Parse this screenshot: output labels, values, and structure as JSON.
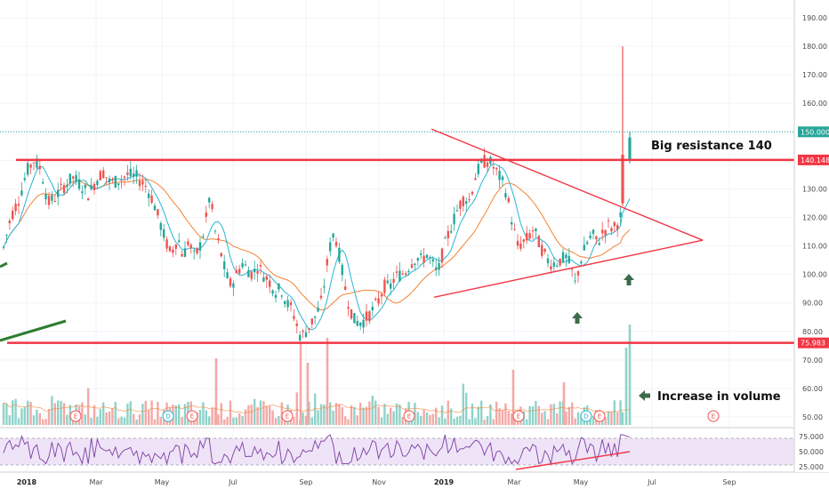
{
  "chart_data": {
    "type": "candlestick",
    "price_axis": {
      "min": 45,
      "max": 192,
      "ticks": [
        50,
        60,
        70,
        80,
        90,
        100,
        110,
        120,
        130,
        140,
        150,
        160,
        170,
        180,
        190
      ],
      "tick_labels": [
        "50.00",
        "60.00",
        "70.00",
        "80.00",
        "90.00",
        "100.00",
        "110.00",
        "120.00",
        "130.00",
        "140.00",
        "150.00",
        "160.00",
        "170.00",
        "180.00",
        "190.00"
      ]
    },
    "rsi_axis": {
      "min": 20,
      "max": 80,
      "ticks": [
        25,
        50,
        75
      ],
      "tick_labels": [
        "25.000",
        "50.000",
        "75.000"
      ]
    },
    "time_axis": {
      "labels": [
        "2018",
        "Mar",
        "May",
        "Jul",
        "Sep",
        "Nov",
        "2019",
        "Mar",
        "May",
        "Jul",
        "Sep"
      ],
      "bold": [
        true,
        false,
        false,
        false,
        false,
        false,
        true,
        false,
        false,
        false,
        false
      ]
    },
    "price_tags": [
      {
        "value": 150.0,
        "label": "150.000",
        "color": "#26a69a"
      },
      {
        "value": 140.148,
        "label": "140.148",
        "color": "#f23645"
      },
      {
        "value": 75.983,
        "label": "75.983",
        "color": "#f23645"
      }
    ],
    "price_path": [
      [
        0,
        104
      ],
      [
        12,
        120
      ],
      [
        22,
        127
      ],
      [
        30,
        136
      ],
      [
        38,
        140
      ],
      [
        46,
        137
      ],
      [
        54,
        125
      ],
      [
        62,
        127
      ],
      [
        72,
        131
      ],
      [
        82,
        134
      ],
      [
        92,
        131
      ],
      [
        100,
        128
      ],
      [
        108,
        133
      ],
      [
        116,
        136
      ],
      [
        124,
        132
      ],
      [
        134,
        133
      ],
      [
        144,
        135
      ],
      [
        154,
        134
      ],
      [
        164,
        131
      ],
      [
        172,
        126
      ],
      [
        180,
        118
      ],
      [
        186,
        112
      ],
      [
        192,
        107
      ],
      [
        200,
        113
      ],
      [
        206,
        106
      ],
      [
        212,
        112
      ],
      [
        218,
        106
      ],
      [
        224,
        109
      ],
      [
        230,
        116
      ],
      [
        236,
        128
      ],
      [
        242,
        115
      ],
      [
        248,
        108
      ],
      [
        254,
        100
      ],
      [
        260,
        96
      ],
      [
        266,
        100
      ],
      [
        272,
        104
      ],
      [
        278,
        102
      ],
      [
        284,
        100
      ],
      [
        290,
        103
      ],
      [
        296,
        100
      ],
      [
        302,
        98
      ],
      [
        310,
        94
      ],
      [
        316,
        95
      ],
      [
        322,
        90
      ],
      [
        328,
        88
      ],
      [
        334,
        82
      ],
      [
        338,
        78
      ],
      [
        344,
        80
      ],
      [
        350,
        83
      ],
      [
        356,
        86
      ],
      [
        362,
        91
      ],
      [
        366,
        100
      ],
      [
        370,
        108
      ],
      [
        374,
        114
      ],
      [
        378,
        112
      ],
      [
        382,
        106
      ],
      [
        386,
        99
      ],
      [
        390,
        92
      ],
      [
        394,
        88
      ],
      [
        398,
        84
      ],
      [
        404,
        83
      ],
      [
        410,
        84
      ],
      [
        418,
        87
      ],
      [
        426,
        91
      ],
      [
        432,
        96
      ],
      [
        438,
        95
      ],
      [
        444,
        99
      ],
      [
        450,
        100
      ],
      [
        456,
        101
      ],
      [
        462,
        104
      ],
      [
        468,
        106
      ],
      [
        474,
        105
      ],
      [
        480,
        107
      ],
      [
        486,
        104
      ],
      [
        492,
        100
      ],
      [
        498,
        108
      ],
      [
        504,
        114
      ],
      [
        510,
        119
      ],
      [
        516,
        124
      ],
      [
        522,
        127
      ],
      [
        528,
        126
      ],
      [
        534,
        134
      ],
      [
        540,
        138
      ],
      [
        546,
        140
      ],
      [
        552,
        139
      ],
      [
        558,
        136
      ],
      [
        564,
        133
      ],
      [
        570,
        128
      ],
      [
        576,
        118
      ],
      [
        582,
        110
      ],
      [
        588,
        111
      ],
      [
        594,
        113
      ],
      [
        600,
        116
      ],
      [
        606,
        111
      ],
      [
        612,
        107
      ],
      [
        618,
        104
      ],
      [
        624,
        104
      ],
      [
        630,
        105
      ],
      [
        636,
        106
      ],
      [
        642,
        103
      ],
      [
        646,
        96
      ],
      [
        650,
        101
      ],
      [
        654,
        106
      ],
      [
        660,
        111
      ],
      [
        666,
        114
      ],
      [
        672,
        111
      ],
      [
        678,
        115
      ],
      [
        684,
        117
      ],
      [
        690,
        116
      ],
      [
        696,
        119
      ],
      [
        700,
        122
      ],
      [
        704,
        130
      ],
      [
        707,
        134
      ]
    ],
    "candle_x_start": 4,
    "candle_x_end": 708,
    "candle_spacing": 3.4,
    "breakout_candles": [
      {
        "x": 700,
        "open": 125,
        "close": 142,
        "high": 180,
        "low": 124,
        "color": "#ef5350"
      },
      {
        "x": 708,
        "open": 140,
        "close": 148,
        "high": 150,
        "low": 139,
        "color": "#26a69a"
      }
    ],
    "volume_spikes": [
      {
        "x": 243,
        "h": 75
      },
      {
        "x": 338,
        "h": 94
      },
      {
        "x": 346,
        "h": 70
      },
      {
        "x": 368,
        "h": 98
      },
      {
        "x": 577,
        "h": 62
      },
      {
        "x": 634,
        "h": 48
      },
      {
        "x": 704,
        "h": 87
      },
      {
        "x": 708,
        "h": 113
      }
    ],
    "resistance_line": {
      "value": 140.148,
      "label": "Big resistance 140"
    },
    "support_line": {
      "value": 75.983
    },
    "triangle": {
      "upper_start": [
        "2019-01 (x≈485)",
        151
      ],
      "apex": [
        "x≈790",
        112
      ],
      "lower_start": [
        "x≈488",
        92
      ]
    },
    "annotations": [
      {
        "text": "Big resistance 140"
      },
      {
        "text": "Increase in volume"
      }
    ],
    "event_markers": [
      {
        "x": 85,
        "letter": "E",
        "kind": "earnings"
      },
      {
        "x": 189,
        "letter": "D",
        "kind": "dividend"
      },
      {
        "x": 216,
        "letter": "E",
        "kind": "earnings"
      },
      {
        "x": 323,
        "letter": "E",
        "kind": "earnings"
      },
      {
        "x": 460,
        "letter": "E",
        "kind": "earnings"
      },
      {
        "x": 583,
        "letter": "E",
        "kind": "earnings"
      },
      {
        "x": 659,
        "letter": "D",
        "kind": "dividend"
      },
      {
        "x": 674,
        "letter": "E",
        "kind": "earnings"
      },
      {
        "x": 802,
        "letter": "E",
        "kind": "earnings"
      }
    ],
    "series": [
      {
        "name": "",
        "kind": "ma-fast",
        "color": "#26b5d3"
      },
      {
        "name": "",
        "kind": "ma-slow",
        "color": "#f58231"
      },
      {
        "name": "",
        "kind": "rsi",
        "color": "#7b3fa3"
      }
    ]
  }
}
